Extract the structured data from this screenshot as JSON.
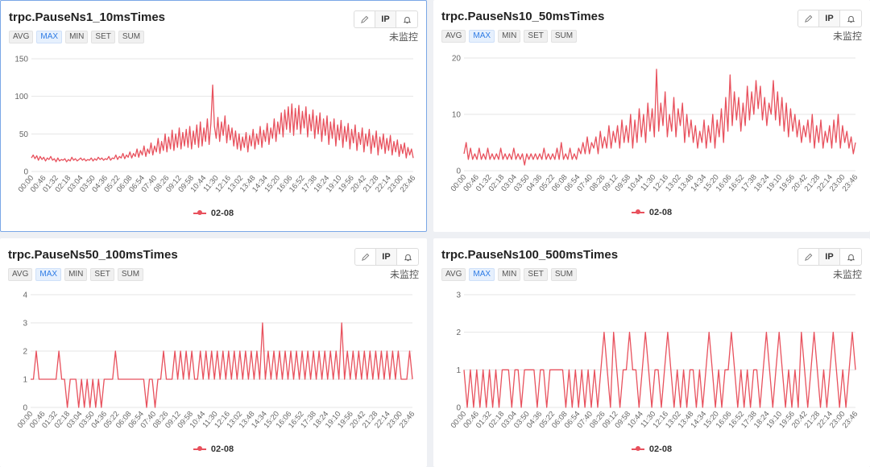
{
  "labels": {
    "aggs": [
      "AVG",
      "MAX",
      "MIN",
      "SET",
      "SUM"
    ],
    "active_agg": "MAX",
    "ip": "IP",
    "status": "未监控",
    "legend": "02-08"
  },
  "colors": {
    "series": "#e8515d",
    "grid": "#e6e6e6",
    "axis_text": "#666",
    "active_agg": "#2d7be5"
  },
  "icons": {
    "edit": "pencil-icon",
    "alert": "bell-icon"
  },
  "x_ticks": [
    "00:00",
    "00:46",
    "01:32",
    "02:18",
    "03:04",
    "03:50",
    "04:36",
    "05:22",
    "06:08",
    "06:54",
    "07:40",
    "08:26",
    "09:12",
    "09:58",
    "10:44",
    "11:30",
    "12:16",
    "13:02",
    "13:48",
    "14:34",
    "15:20",
    "16:06",
    "16:52",
    "17:38",
    "18:24",
    "19:10",
    "19:56",
    "20:42",
    "21:28",
    "22:14",
    "23:00",
    "23:46"
  ],
  "chart_data": [
    {
      "type": "line",
      "title": "trpc.PauseNs1_10msTimes",
      "ylim": [
        0,
        150
      ],
      "yticks": [
        0,
        50,
        100,
        150
      ],
      "series": [
        {
          "name": "02-08",
          "values": [
            18,
            22,
            17,
            21,
            15,
            20,
            16,
            19,
            14,
            18,
            16,
            20,
            15,
            17,
            13,
            18,
            14,
            16,
            15,
            17,
            13,
            16,
            14,
            19,
            15,
            17,
            14,
            16,
            18,
            15,
            17,
            14,
            16,
            15,
            18,
            14,
            17,
            15,
            19,
            16,
            18,
            15,
            17,
            16,
            20,
            15,
            18,
            17,
            22,
            16,
            20,
            18,
            24,
            17,
            22,
            19,
            26,
            18,
            24,
            20,
            30,
            19,
            28,
            22,
            34,
            20,
            30,
            24,
            38,
            22,
            34,
            26,
            44,
            24,
            40,
            28,
            50,
            26,
            46,
            30,
            55,
            28,
            50,
            32,
            58,
            30,
            52,
            34,
            56,
            32,
            60,
            30,
            54,
            36,
            62,
            32,
            66,
            34,
            58,
            40,
            70,
            36,
            64,
            115,
            60,
            44,
            72,
            40,
            66,
            48,
            74,
            38,
            62,
            42,
            58,
            34,
            54,
            30,
            50,
            28,
            46,
            32,
            52,
            26,
            48,
            34,
            56,
            30,
            50,
            36,
            60,
            32,
            55,
            40,
            64,
            36,
            58,
            44,
            70,
            40,
            66,
            50,
            78,
            46,
            82,
            56,
            86,
            52,
            90,
            48,
            84,
            56,
            88,
            50,
            80,
            58,
            86,
            46,
            76,
            54,
            82,
            44,
            74,
            50,
            78,
            40,
            70,
            48,
            74,
            36,
            66,
            44,
            70,
            34,
            62,
            42,
            68,
            32,
            60,
            40,
            64,
            30,
            56,
            38,
            62,
            28,
            52,
            36,
            58,
            26,
            50,
            34,
            56,
            24,
            48,
            32,
            54,
            22,
            46,
            30,
            50,
            24,
            44,
            28,
            48,
            22,
            40,
            26,
            42,
            20,
            36,
            24,
            38,
            18,
            32,
            22,
            30,
            18
          ]
        }
      ]
    },
    {
      "type": "line",
      "title": "trpc.PauseNs10_50msTimes",
      "ylim": [
        0,
        20
      ],
      "yticks": [
        0,
        10,
        20
      ],
      "series": [
        {
          "name": "02-08",
          "values": [
            3,
            5,
            2,
            4,
            2,
            3,
            2,
            4,
            2,
            3,
            2,
            4,
            2,
            3,
            2,
            3,
            2,
            4,
            2,
            3,
            2,
            3,
            2,
            4,
            2,
            3,
            2,
            3,
            1,
            3,
            2,
            3,
            2,
            3,
            2,
            3,
            2,
            4,
            2,
            3,
            2,
            3,
            2,
            4,
            2,
            5,
            2,
            3,
            2,
            4,
            2,
            3,
            2,
            4,
            3,
            5,
            3,
            6,
            3,
            5,
            4,
            6,
            3,
            7,
            4,
            6,
            4,
            8,
            4,
            7,
            5,
            8,
            4,
            9,
            5,
            8,
            5,
            10,
            4,
            9,
            5,
            11,
            6,
            10,
            5,
            12,
            7,
            11,
            6,
            18,
            7,
            12,
            8,
            14,
            6,
            10,
            7,
            13,
            6,
            11,
            8,
            12,
            5,
            10,
            6,
            9,
            5,
            8,
            4,
            7,
            5,
            9,
            4,
            8,
            5,
            10,
            4,
            9,
            6,
            11,
            5,
            13,
            7,
            17,
            8,
            14,
            9,
            13,
            7,
            12,
            8,
            15,
            9,
            14,
            10,
            16,
            11,
            15,
            9,
            13,
            8,
            12,
            10,
            16,
            9,
            14,
            8,
            13,
            7,
            12,
            6,
            11,
            7,
            10,
            6,
            9,
            5,
            8,
            6,
            9,
            5,
            10,
            4,
            8,
            5,
            9,
            4,
            7,
            5,
            8,
            4,
            9,
            5,
            10,
            4,
            8,
            5,
            7,
            4,
            6,
            3,
            5
          ]
        }
      ]
    },
    {
      "type": "line",
      "title": "trpc.PauseNs50_100msTimes",
      "ylim": [
        0,
        4
      ],
      "yticks": [
        0,
        1,
        2,
        3,
        4
      ],
      "series": [
        {
          "name": "02-08",
          "values": [
            1,
            1,
            2,
            1,
            1,
            1,
            1,
            1,
            1,
            1,
            2,
            1,
            1,
            0,
            1,
            1,
            1,
            0,
            1,
            0,
            1,
            0,
            1,
            0,
            1,
            0,
            1,
            1,
            1,
            1,
            2,
            1,
            1,
            1,
            1,
            1,
            1,
            1,
            1,
            1,
            1,
            0,
            1,
            1,
            0,
            1,
            1,
            2,
            1,
            1,
            1,
            2,
            1,
            2,
            1,
            2,
            1,
            2,
            1,
            1,
            2,
            1,
            2,
            1,
            2,
            1,
            2,
            1,
            2,
            1,
            2,
            1,
            2,
            1,
            2,
            1,
            2,
            1,
            2,
            1,
            2,
            1,
            3,
            1,
            2,
            1,
            2,
            1,
            2,
            1,
            2,
            1,
            2,
            1,
            2,
            1,
            2,
            1,
            2,
            1,
            2,
            1,
            2,
            1,
            2,
            1,
            2,
            1,
            2,
            1,
            3,
            1,
            2,
            1,
            2,
            1,
            2,
            1,
            2,
            1,
            2,
            1,
            2,
            1,
            2,
            1,
            2,
            1,
            2,
            1,
            2,
            1,
            1,
            1,
            2,
            1
          ]
        }
      ]
    },
    {
      "type": "line",
      "title": "trpc.PauseNs100_500msTimes",
      "ylim": [
        0,
        3
      ],
      "yticks": [
        0,
        1,
        2,
        3
      ],
      "series": [
        {
          "name": "02-08",
          "values": [
            1,
            0,
            1,
            0,
            1,
            0,
            1,
            0,
            1,
            0,
            1,
            0,
            1,
            1,
            1,
            0,
            1,
            1,
            0,
            1,
            1,
            1,
            1,
            0,
            1,
            1,
            0,
            1,
            1,
            1,
            1,
            1,
            0,
            1,
            0,
            1,
            0,
            1,
            0,
            1,
            0,
            1,
            0,
            1,
            2,
            1,
            0,
            2,
            1,
            0,
            1,
            1,
            2,
            1,
            1,
            0,
            1,
            2,
            1,
            0,
            1,
            1,
            0,
            1,
            2,
            1,
            0,
            1,
            0,
            1,
            0,
            1,
            1,
            0,
            1,
            0,
            1,
            2,
            1,
            0,
            1,
            0,
            1,
            1,
            2,
            1,
            0,
            1,
            0,
            1,
            0,
            1,
            1,
            0,
            1,
            2,
            1,
            0,
            1,
            2,
            1,
            0,
            1,
            0,
            1,
            0,
            2,
            1,
            0,
            1,
            2,
            1,
            0,
            1,
            0,
            1,
            2,
            1,
            0,
            1,
            0,
            1,
            2,
            1
          ]
        }
      ]
    }
  ]
}
